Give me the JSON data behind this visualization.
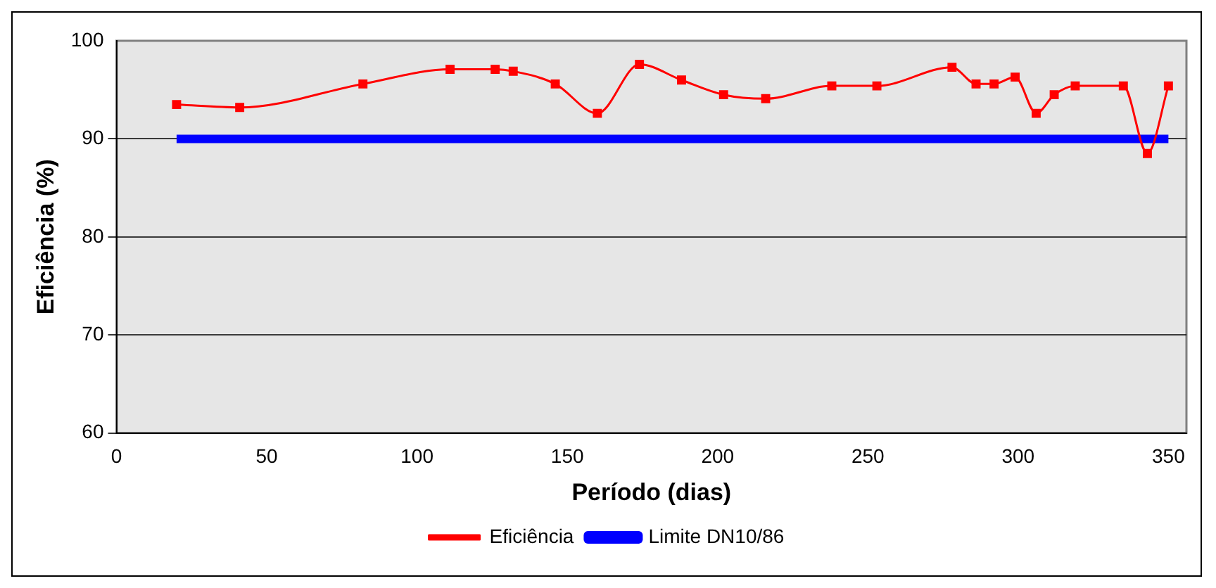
{
  "chart_data": {
    "type": "line",
    "xlabel": "Período (dias)",
    "ylabel": "Eficiência (%)",
    "xlim": [
      0,
      356
    ],
    "xticks": [
      0,
      50,
      100,
      150,
      200,
      250,
      300,
      350
    ],
    "ylim": [
      60,
      100
    ],
    "yticks": [
      60,
      70,
      80,
      90,
      100
    ],
    "grid": "y",
    "legend": "bottom",
    "marker": "square",
    "series": [
      {
        "name": "Eficiência",
        "color": "#ff0000",
        "x": [
          20,
          41,
          82,
          111,
          126,
          132,
          146,
          160,
          174,
          188,
          202,
          216,
          238,
          253,
          278,
          286,
          292,
          299,
          306,
          312,
          319,
          335,
          343,
          350
        ],
        "values": [
          93.5,
          93.2,
          95.6,
          97.1,
          97.1,
          96.9,
          95.6,
          92.6,
          97.6,
          96.0,
          94.5,
          94.1,
          95.4,
          95.4,
          97.3,
          95.6,
          95.6,
          96.3,
          92.6,
          94.5,
          95.4,
          95.4,
          88.5,
          95.4
        ]
      },
      {
        "name": "Limite DN10/86",
        "color": "#0000ff",
        "marker": "none",
        "x": [
          20,
          41,
          82,
          111,
          126,
          132,
          146,
          160,
          174,
          188,
          202,
          216,
          238,
          253,
          278,
          286,
          292,
          299,
          306,
          312,
          319,
          335,
          343,
          350
        ],
        "values": [
          90,
          90,
          90,
          90,
          90,
          90,
          90,
          90,
          90,
          90,
          90,
          90,
          90,
          90,
          90,
          90,
          90,
          90,
          90,
          90,
          90,
          90,
          90,
          90
        ]
      }
    ]
  }
}
